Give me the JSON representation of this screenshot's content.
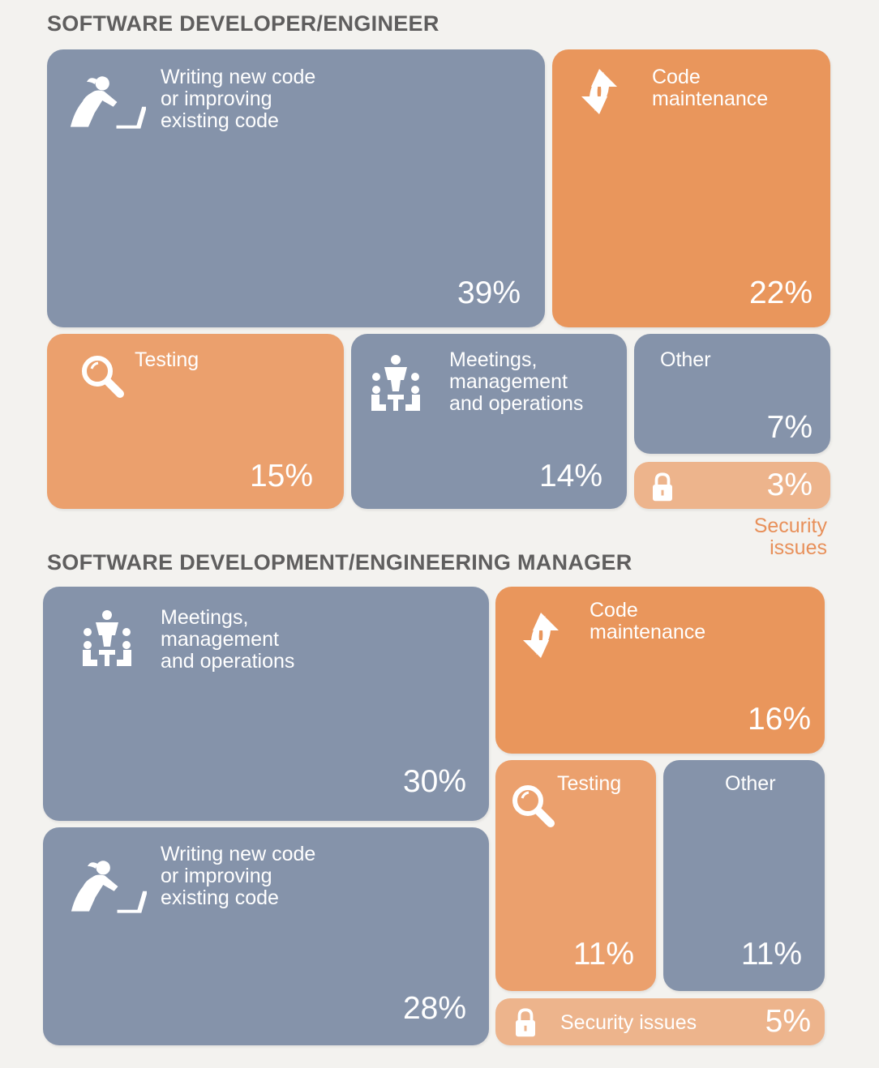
{
  "colors": {
    "slate": "#8593aa",
    "orange": "#e9965c",
    "peach": "#edb48c",
    "title_gray": "#5f5e5e",
    "background": "#f3f2ef"
  },
  "chart_data": [
    {
      "type": "treemap",
      "title": "SOFTWARE DEVELOPER/ENGINEER",
      "unit": "%",
      "categories": [
        "Writing new code or improving existing code",
        "Code maintenance",
        "Testing",
        "Meetings, management and operations",
        "Other",
        "Security issues"
      ],
      "values": [
        39,
        22,
        15,
        14,
        7,
        3
      ],
      "items": [
        {
          "label": "Writing new code\nor improving\nexisting code",
          "value": 39,
          "value_label": "39%",
          "color": "slate",
          "icon": "person-at-laptop-icon"
        },
        {
          "label": "Code\nmaintenance",
          "value": 22,
          "value_label": "22%",
          "color": "orange",
          "icon": "refresh-arrows-icon"
        },
        {
          "label": "Testing",
          "value": 15,
          "value_label": "15%",
          "color": "orange",
          "icon": "magnifier-icon"
        },
        {
          "label": "Meetings,\nmanagement\nand operations",
          "value": 14,
          "value_label": "14%",
          "color": "slate",
          "icon": "meeting-icon"
        },
        {
          "label": "Other",
          "value": 7,
          "value_label": "7%",
          "color": "slate",
          "icon": ""
        },
        {
          "label": "Security\nissues",
          "value": 3,
          "value_label": "3%",
          "color": "peach",
          "icon": "lock-icon"
        }
      ]
    },
    {
      "type": "treemap",
      "title": "SOFTWARE DEVELOPMENT/ENGINEERING MANAGER",
      "unit": "%",
      "categories": [
        "Meetings, management and operations",
        "Writing new code or improving existing code",
        "Code maintenance",
        "Testing",
        "Other",
        "Security issues"
      ],
      "values": [
        30,
        28,
        16,
        11,
        11,
        5
      ],
      "items": [
        {
          "label": "Meetings,\nmanagement\nand operations",
          "value": 30,
          "value_label": "30%",
          "color": "slate",
          "icon": "meeting-icon"
        },
        {
          "label": "Writing new code\nor improving\nexisting code",
          "value": 28,
          "value_label": "28%",
          "color": "slate",
          "icon": "person-at-laptop-icon"
        },
        {
          "label": "Code\nmaintenance",
          "value": 16,
          "value_label": "16%",
          "color": "orange",
          "icon": "refresh-arrows-icon"
        },
        {
          "label": "Testing",
          "value": 11,
          "value_label": "11%",
          "color": "orange",
          "icon": "magnifier-icon"
        },
        {
          "label": "Other",
          "value": 11,
          "value_label": "11%",
          "color": "slate",
          "icon": ""
        },
        {
          "label": "Security issues",
          "value": 5,
          "value_label": "5%",
          "color": "peach",
          "icon": "lock-icon"
        }
      ]
    }
  ]
}
